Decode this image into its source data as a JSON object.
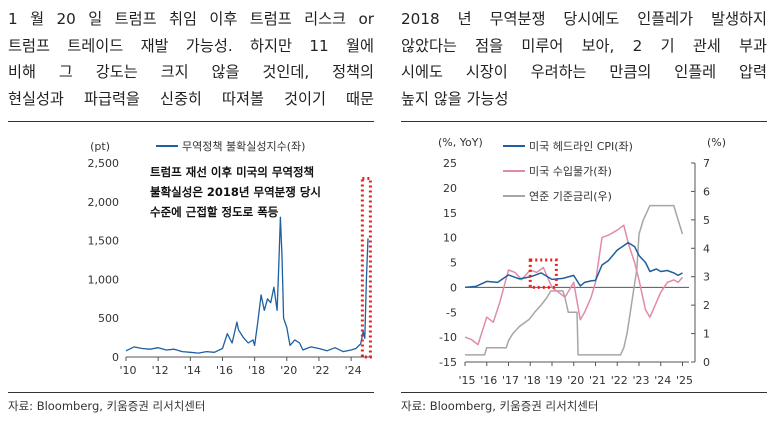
{
  "left_panel": {
    "headline": [
      "1 월 20 일 트럼프 취임 이후 트럼프 리스크 or",
      "트럼프 트레이드 재발 가능성. 하지만 11 월에",
      "비해 그 강도는 크지 않을 것인데, 정책의",
      "현실성과 파급력을 신중히 따져볼 것이기 때문"
    ],
    "source": "자료: Bloomberg, 키움증권 리서치센터"
  },
  "right_panel": {
    "headline": [
      "2018 년 무역분쟁 당시에도 인플레가 발생하지",
      "않았다는 점을 미루어 보아, 2 기 관세 부과",
      "시에도 시장이 우려하는 만큼의 인플레 압력",
      "높지 않을 가능성"
    ],
    "source": "자료: Bloomberg, 키움증권 리서치센터"
  },
  "colors": {
    "blue": "#1f5fa0",
    "pink": "#e28aa8",
    "gray": "#a6a6a6",
    "red": "#e8211c"
  },
  "chart_data": [
    {
      "type": "line",
      "yunit": "(pt)",
      "ylim": [
        0,
        2500
      ],
      "yticks": [
        0,
        500,
        1000,
        1500,
        2000,
        2500
      ],
      "ytick_labels": [
        "0",
        "500",
        "1,000",
        "1,500",
        "2,000",
        "2,500"
      ],
      "xlim": [
        2010,
        2025.3
      ],
      "xticks": [
        2010,
        2012,
        2014,
        2016,
        2018,
        2020,
        2022,
        2024
      ],
      "xtick_labels": [
        "'10",
        "'12",
        "'14",
        "'16",
        "'18",
        "'20",
        "'22",
        "'24"
      ],
      "legend": "top",
      "annotation": [
        "트럼프 재선 이후 미국의 무역정책",
        "불확실성은 2018년 무역분쟁 당시",
        "수준에 근접할 정도로 폭등"
      ],
      "series": [
        {
          "name": "무역정책 불확실성지수(좌)",
          "x": [
            2010.0,
            2010.5,
            2011.0,
            2011.5,
            2012.0,
            2012.5,
            2013.0,
            2013.5,
            2014.0,
            2014.5,
            2015.0,
            2015.5,
            2016.0,
            2016.3,
            2016.6,
            2016.9,
            2017.0,
            2017.3,
            2017.6,
            2017.9,
            2018.0,
            2018.2,
            2018.4,
            2018.6,
            2018.8,
            2019.0,
            2019.2,
            2019.4,
            2019.5,
            2019.6,
            2019.7,
            2019.8,
            2020.0,
            2020.2,
            2020.5,
            2020.8,
            2021.0,
            2021.5,
            2022.0,
            2022.5,
            2023.0,
            2023.5,
            2024.0,
            2024.3,
            2024.6,
            2024.75,
            2024.85,
            2024.95,
            2025.05
          ],
          "y": [
            80,
            130,
            110,
            100,
            120,
            90,
            100,
            70,
            60,
            50,
            70,
            60,
            110,
            300,
            180,
            450,
            350,
            250,
            180,
            220,
            150,
            450,
            800,
            600,
            750,
            700,
            900,
            600,
            1150,
            1800,
            1300,
            500,
            380,
            150,
            220,
            180,
            90,
            130,
            110,
            80,
            120,
            70,
            90,
            110,
            170,
            330,
            240,
            1000,
            1530
          ]
        }
      ],
      "highlight": {
        "x": [
          2024.7,
          2025.2
        ],
        "y": [
          0,
          2300
        ]
      }
    },
    {
      "type": "line",
      "yunit_left": "(%, YoY)",
      "yunit_right": "(%)",
      "ylim_left": [
        -15,
        25
      ],
      "yticks_left": [
        -15,
        -10,
        -5,
        0,
        5,
        10,
        15,
        20,
        25
      ],
      "ylim_right": [
        0,
        7
      ],
      "yticks_right": [
        0,
        1,
        2,
        3,
        4,
        5,
        6,
        7
      ],
      "xlim": [
        2015,
        2025.3
      ],
      "xticks": [
        2015,
        2016,
        2017,
        2018,
        2019,
        2020,
        2021,
        2022,
        2023,
        2024,
        2025
      ],
      "xtick_labels": [
        "'15",
        "'16",
        "'17",
        "'18",
        "'19",
        "'20",
        "'21",
        "'22",
        "'23",
        "'24",
        "'25"
      ],
      "legend": "top",
      "series": [
        {
          "name": "미국 헤드라인 CPI(좌)",
          "axis": "left",
          "x": [
            2015.0,
            2015.5,
            2016.0,
            2016.5,
            2017.0,
            2017.5,
            2018.0,
            2018.5,
            2019.0,
            2019.5,
            2020.0,
            2020.3,
            2020.5,
            2020.8,
            2021.0,
            2021.3,
            2021.6,
            2022.0,
            2022.3,
            2022.5,
            2022.8,
            2023.0,
            2023.3,
            2023.5,
            2023.8,
            2024.0,
            2024.3,
            2024.6,
            2024.8,
            2025.0
          ],
          "y": [
            0.0,
            0.2,
            1.2,
            1.0,
            2.5,
            1.7,
            2.1,
            2.9,
            1.6,
            1.8,
            2.4,
            0.3,
            1.0,
            1.3,
            1.4,
            4.5,
            5.4,
            7.5,
            8.4,
            9.0,
            8.2,
            6.4,
            5.0,
            3.2,
            3.7,
            3.2,
            3.4,
            2.9,
            2.4,
            2.9
          ]
        },
        {
          "name": "미국 수입물가(좌)",
          "axis": "left",
          "x": [
            2015.0,
            2015.3,
            2015.6,
            2016.0,
            2016.3,
            2016.6,
            2017.0,
            2017.3,
            2017.6,
            2018.0,
            2018.3,
            2018.6,
            2019.0,
            2019.3,
            2019.6,
            2020.0,
            2020.3,
            2020.5,
            2020.8,
            2021.0,
            2021.3,
            2021.6,
            2022.0,
            2022.3,
            2022.5,
            2022.8,
            2023.0,
            2023.3,
            2023.5,
            2023.8,
            2024.0,
            2024.3,
            2024.6,
            2024.8,
            2025.0
          ],
          "y": [
            -10.0,
            -10.5,
            -11.5,
            -6.0,
            -7.0,
            -3.0,
            3.5,
            3.0,
            1.5,
            3.5,
            3.0,
            4.0,
            0.0,
            -1.0,
            -2.0,
            1.0,
            -6.5,
            -5.0,
            -2.0,
            1.0,
            10.0,
            10.5,
            11.5,
            12.5,
            9.0,
            5.0,
            1.5,
            -4.5,
            -6.0,
            -3.0,
            -1.0,
            1.0,
            1.5,
            1.0,
            2.0
          ]
        },
        {
          "name": "연준 기준금리(우)",
          "axis": "right",
          "x": [
            2015.0,
            2015.9,
            2016.0,
            2016.9,
            2017.0,
            2017.2,
            2017.5,
            2017.95,
            2018.2,
            2018.5,
            2018.75,
            2018.95,
            2019.5,
            2019.6,
            2019.75,
            2020.15,
            2020.2,
            2022.15,
            2022.3,
            2022.45,
            2022.6,
            2022.75,
            2022.9,
            2023.0,
            2023.2,
            2023.5,
            2024.6,
            2024.8,
            2024.9,
            2025.0
          ],
          "y": [
            0.25,
            0.25,
            0.5,
            0.5,
            0.75,
            1.0,
            1.25,
            1.5,
            1.75,
            2.0,
            2.25,
            2.5,
            2.5,
            2.25,
            1.75,
            1.75,
            0.25,
            0.25,
            0.5,
            1.0,
            1.75,
            2.5,
            3.25,
            4.5,
            5.0,
            5.5,
            5.5,
            5.0,
            4.75,
            4.5
          ]
        }
      ],
      "highlight": {
        "x": [
          2018.0,
          2019.2
        ],
        "y": [
          0.0,
          5.5
        ]
      }
    }
  ]
}
